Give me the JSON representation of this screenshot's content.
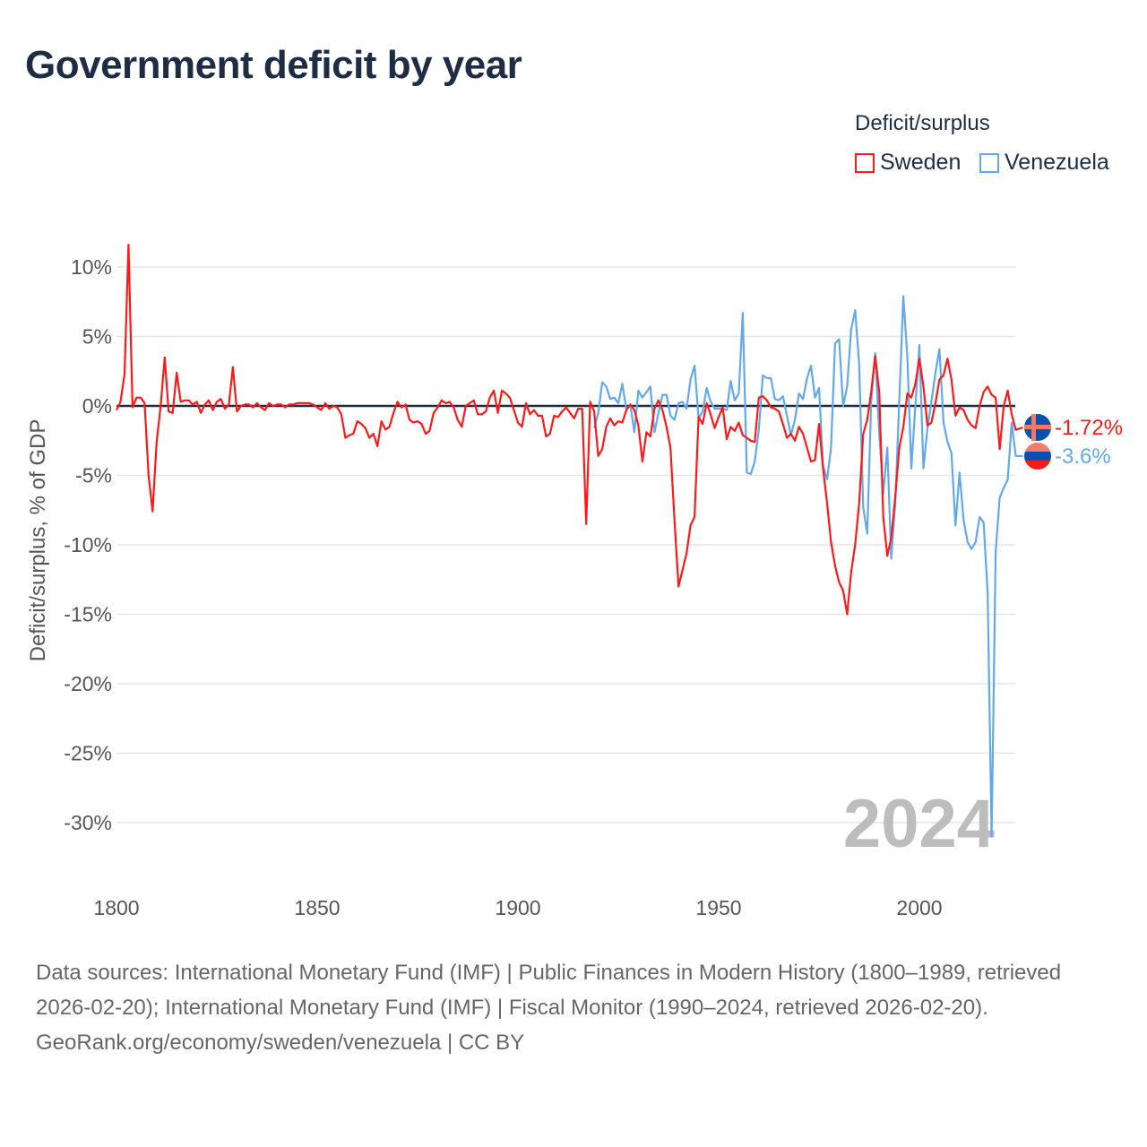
{
  "title": "Government deficit by year",
  "legend": {
    "title": "Deficit/surplus",
    "items": [
      {
        "label": "Sweden",
        "color": "#ff1a1a"
      },
      {
        "label": "Venezuela",
        "color": "#64a8ec"
      }
    ]
  },
  "year_watermark": "2024",
  "end_labels": {
    "sweden": "-1.72%",
    "venezuela": "-3.6%"
  },
  "footer": {
    "sources": "Data sources: International Monetary Fund (IMF) | Public Finances in Modern History (1800–1989, retrieved 2026-02-20); International Monetary Fund (IMF) | Fiscal Monitor (1990–2024, retrieved 2026-02-20).",
    "credit": "GeoRank.org/economy/sweden/venezuela | CC BY"
  },
  "chart_data": {
    "type": "line",
    "title": "Government deficit by year",
    "xlabel": "",
    "ylabel": "Deficit/surplus, % of GDP",
    "xlim": [
      1800,
      2024
    ],
    "ylim": [
      -30,
      10
    ],
    "xticks": [
      "1800",
      "1850",
      "1900",
      "1950",
      "2000"
    ],
    "xtick_values": [
      1800,
      1850,
      1900,
      1950,
      2000
    ],
    "yticks": [
      "10%",
      "5%",
      "0%",
      "-5%",
      "-10%",
      "-15%",
      "-20%",
      "-25%",
      "-30%"
    ],
    "ytick_values": [
      10,
      5,
      0,
      -5,
      -10,
      -15,
      -20,
      -25,
      -30
    ],
    "grid": true,
    "legend_position": "top-right",
    "series": [
      {
        "name": "Sweden",
        "color": "#ff1a1a",
        "start_year": 1800,
        "values": [
          -0.3,
          0.3,
          2.3,
          11.6,
          -0.1,
          0.6,
          0.6,
          0.2,
          -5,
          -7.6,
          -2.6,
          0,
          3.5,
          -0.4,
          -0.5,
          2.4,
          0.3,
          0.4,
          0.4,
          0.1,
          0.3,
          -0.5,
          0.1,
          0.4,
          -0.3,
          0.3,
          0.5,
          -0.2,
          0.1,
          2.8,
          -0.4,
          0,
          0.1,
          0.1,
          -0.1,
          0.2,
          -0.1,
          -0.3,
          0.2,
          0,
          0.1,
          0.1,
          -0.1,
          0.1,
          0.1,
          0.2,
          0.2,
          0.2,
          0.2,
          0.1,
          -0.1,
          -0.3,
          0.2,
          -0.2,
          0,
          -0.1,
          -0.6,
          -2.3,
          -2.1,
          -2.0,
          -1.1,
          -1.3,
          -1.6,
          -2.3,
          -2.0,
          -2.9,
          -1.1,
          -1.7,
          -1.5,
          -0.5,
          0.3,
          -0.1,
          0.1,
          -1.0,
          -1.2,
          -1.1,
          -1.3,
          -2.0,
          -1.8,
          -0.5,
          -0.1,
          0.4,
          0.2,
          0.3,
          -0.1,
          -1.0,
          -1.5,
          0,
          0.2,
          0.4,
          -0.6,
          -0.6,
          -0.4,
          0.6,
          1.1,
          -0.5,
          1.1,
          0.9,
          0.6,
          -0.3,
          -1.2,
          -1.5,
          0.2,
          -0.6,
          -0.3,
          -0.7,
          -0.7,
          -2.2,
          -2.0,
          -0.7,
          -0.8,
          -0.4,
          -0.1,
          -0.5,
          -0.9,
          -0.2,
          -0.2,
          -8.5,
          0.3,
          -0.4,
          -3.6,
          -3.1,
          -1.5,
          -0.9,
          -1.4,
          -1.1,
          -1.2,
          -0.3,
          0.1,
          -0.3,
          -1.4,
          -4.0,
          -1.9,
          -2.2,
          -0.2,
          0.4,
          -0.3,
          -1.5,
          -3.0,
          -8.2,
          -13.0,
          -11.8,
          -10.6,
          -8.6,
          -8.0,
          -0.8,
          -1.3,
          0.2,
          -0.6,
          -1.6,
          -0.8,
          -0.1,
          -2.4,
          -1.5,
          -1.8,
          -1.2,
          -2.1,
          -2.3,
          -2.5,
          -2.6,
          0.6,
          0.7,
          0.4,
          -0.1,
          -0.2,
          -0.4,
          -1.3,
          -2.3,
          -2.0,
          -2.5,
          -1.5,
          -2.0,
          -3.0,
          -4.0,
          -3.9,
          -1.3,
          -4.5,
          -7.0,
          -9.8,
          -11.5,
          -12.7,
          -13.3,
          -15.0,
          -12.0,
          -10.0,
          -7.0,
          -2.0,
          -1.0,
          1.0,
          3.6,
          1.0,
          -8.0,
          -10.8,
          -9.5,
          -6.5,
          -3.0,
          -1.5,
          0.9,
          0.6,
          1.6,
          3.4,
          1.4,
          -1.4,
          -1.2,
          0.2,
          1.9,
          2.2,
          3.4,
          1.9,
          -0.7,
          -0.1,
          -0.3,
          -1.0,
          -1.4,
          -1.6,
          0,
          1.0,
          1.4,
          0.8,
          0.6,
          -3.1,
          0,
          1.1,
          -0.6,
          -1.72
        ]
      },
      {
        "name": "Venezuela",
        "color": "#64a8ec",
        "start_year": 1919,
        "values": [
          -1.6,
          -0.5,
          1.7,
          1.4,
          0.5,
          0.6,
          0.2,
          1.6,
          -0.3,
          0.1,
          -1.9,
          1.1,
          0.6,
          1.0,
          1.4,
          -1.9,
          -0.5,
          0.8,
          0.8,
          -0.7,
          -1.0,
          0.2,
          0.3,
          -0.2,
          1.9,
          2.9,
          -0.9,
          -0.4,
          1.3,
          0.3,
          -0.2,
          -0.2,
          -0.2,
          -0.3,
          1.8,
          0.4,
          0.9,
          6.7,
          -4.8,
          -4.9,
          -4.0,
          -1.7,
          2.2,
          2.0,
          2.0,
          0.5,
          0.4,
          0.7,
          -0.7,
          -2.1,
          -1.0,
          0.9,
          0.5,
          2.0,
          2.9,
          0.6,
          1.3,
          -4.3,
          -5.3,
          -3.0,
          4.5,
          4.8,
          0,
          1.4,
          5.5,
          6.9,
          3.0,
          -7.3,
          -9.2,
          0.3,
          3.8,
          -2.0,
          -6.3,
          -3.0,
          -11.0,
          -7.0,
          0.5,
          7.9,
          3.5,
          -4.5,
          0,
          4.4,
          -4.5,
          -1.6,
          0.3,
          2.4,
          4.1,
          -1.2,
          -2.6,
          -3.4,
          -8.6,
          -4.8,
          -8.2,
          -9.8,
          -10.3,
          -9.8,
          -8.0,
          -8.4,
          -13.5,
          -31.0,
          -10.5,
          -6.6,
          -5.9,
          -5.3,
          -1.2,
          -3.6
        ]
      }
    ]
  }
}
